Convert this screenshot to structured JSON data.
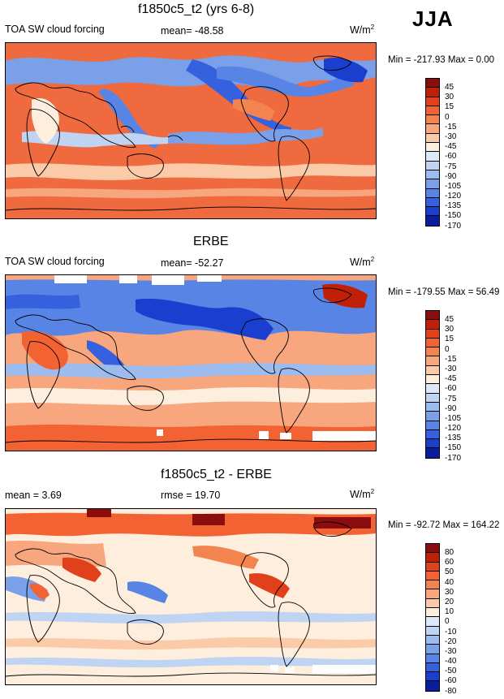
{
  "season": "JJA",
  "panels": [
    {
      "title": "f1850c5_t2 (yrs 6-8)",
      "left_label": "TOA SW cloud forcing",
      "mid_label": "mean= -48.58",
      "units": "W/m",
      "units_sup": "2",
      "minmax": "Min = -217.93 Max =   0.00",
      "levels": [
        "45",
        "30",
        "15",
        "0",
        "-15",
        "-30",
        "-45",
        "-60",
        "-75",
        "-90",
        "-105",
        "-120",
        "-135",
        "-150",
        "-170"
      ],
      "colors": [
        "#8b0d0d",
        "#c01f08",
        "#e0401a",
        "#f36233",
        "#f4844f",
        "#f7a67e",
        "#fbcaa8",
        "#fdeede",
        "#dde9f8",
        "#bfd3f3",
        "#9cbbef",
        "#7aa0ea",
        "#5784e5",
        "#3560de",
        "#1a3fcf",
        "#0b1d9c"
      ]
    },
    {
      "title": "ERBE",
      "left_label": "TOA SW cloud forcing",
      "mid_label": "mean= -52.27",
      "units": "W/m",
      "units_sup": "2",
      "minmax": "Min = -179.55 Max =  56.49",
      "levels": [
        "45",
        "30",
        "15",
        "0",
        "-15",
        "-30",
        "-45",
        "-60",
        "-75",
        "-90",
        "-105",
        "-120",
        "-135",
        "-150",
        "-170"
      ],
      "colors": [
        "#8b0d0d",
        "#c01f08",
        "#e0401a",
        "#f36233",
        "#f4844f",
        "#f7a67e",
        "#fbcaa8",
        "#fdeede",
        "#dde9f8",
        "#bfd3f3",
        "#9cbbef",
        "#7aa0ea",
        "#5784e5",
        "#3560de",
        "#1a3fcf",
        "#0b1d9c"
      ]
    },
    {
      "title": "f1850c5_t2 - ERBE",
      "left_label": "mean =   3.69",
      "mid_label": "rmse =  19.70",
      "units": "W/m",
      "units_sup": "2",
      "minmax": "Min = -92.72 Max = 164.22",
      "levels": [
        "80",
        "60",
        "50",
        "40",
        "30",
        "20",
        "10",
        "0",
        "-10",
        "-20",
        "-30",
        "-40",
        "-50",
        "-60",
        "-80"
      ],
      "colors": [
        "#8b0d0d",
        "#c01f08",
        "#e0401a",
        "#f36233",
        "#f4844f",
        "#f7a67e",
        "#fbcaa8",
        "#fdeede",
        "#dde9f8",
        "#bfd3f3",
        "#9cbbef",
        "#7aa0ea",
        "#5784e5",
        "#3560de",
        "#1a3fcf",
        "#0b1d9c"
      ]
    }
  ]
}
